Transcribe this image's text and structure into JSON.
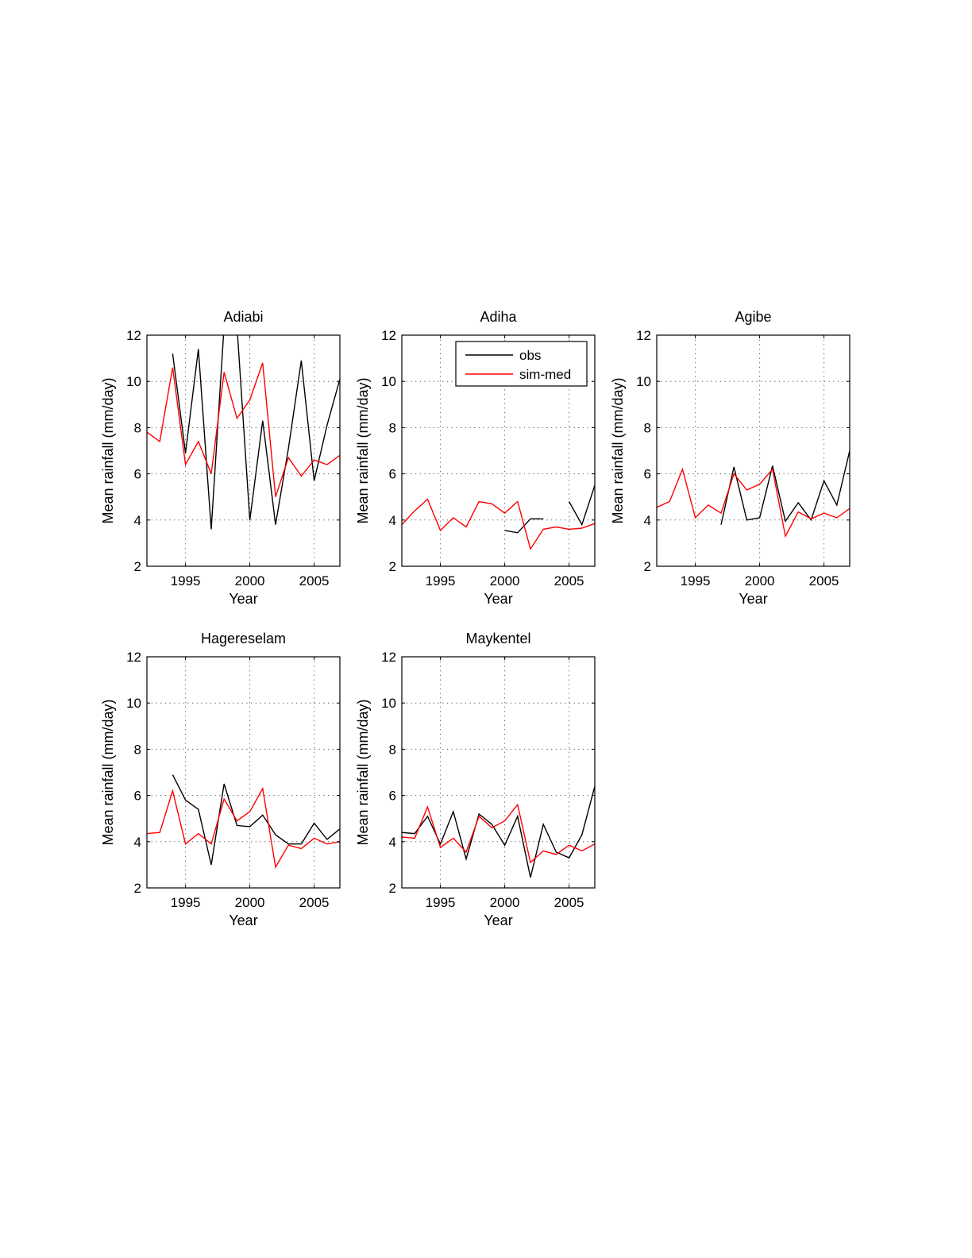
{
  "colors": {
    "obs": "#000000",
    "sim": "#ff0000",
    "grid": "#000000",
    "background": "#ffffff"
  },
  "chart_data": [
    {
      "type": "line",
      "title": "Adiabi",
      "xlabel": "Year",
      "ylabel": "Mean rainfall (mm/day)",
      "xlim": [
        1992,
        2007
      ],
      "ylim": [
        2,
        12
      ],
      "xticks": [
        1995,
        2000,
        2005
      ],
      "yticks": [
        2,
        4,
        6,
        8,
        10,
        12
      ],
      "grid": true,
      "x": [
        1992,
        1993,
        1994,
        1995,
        1996,
        1997,
        1998,
        1999,
        2000,
        2001,
        2002,
        2003,
        2004,
        2005,
        2006,
        2007
      ],
      "series": [
        {
          "name": "obs",
          "color": "#000000",
          "values": [
            null,
            null,
            11.2,
            6.9,
            11.4,
            3.6,
            12.4,
            12.4,
            4.0,
            8.3,
            3.8,
            7.1,
            10.9,
            5.7,
            8.1,
            10.1
          ]
        },
        {
          "name": "sim-med",
          "color": "#ff0000",
          "values": [
            7.8,
            7.4,
            10.6,
            6.4,
            7.4,
            6.0,
            10.4,
            8.4,
            9.2,
            10.8,
            5.0,
            6.7,
            5.9,
            6.6,
            6.4,
            6.8
          ]
        }
      ]
    },
    {
      "type": "line",
      "title": "Adiha",
      "xlabel": "Year",
      "ylabel": "Mean rainfall (mm/day)",
      "xlim": [
        1992,
        2007
      ],
      "ylim": [
        2,
        12
      ],
      "xticks": [
        1995,
        2000,
        2005
      ],
      "yticks": [
        2,
        4,
        6,
        8,
        10,
        12
      ],
      "grid": true,
      "legend": "top-right",
      "x": [
        1992,
        1993,
        1994,
        1995,
        1996,
        1997,
        1998,
        1999,
        2000,
        2001,
        2002,
        2003,
        2004,
        2005,
        2006,
        2007
      ],
      "series": [
        {
          "name": "obs",
          "color": "#000000",
          "values": [
            null,
            null,
            null,
            null,
            null,
            null,
            null,
            null,
            3.55,
            3.45,
            4.05,
            4.05,
            null,
            4.8,
            3.8,
            5.5
          ]
        },
        {
          "name": "sim-med",
          "color": "#ff0000",
          "values": [
            3.8,
            4.4,
            4.9,
            3.55,
            4.1,
            3.7,
            4.8,
            4.7,
            4.3,
            4.8,
            2.75,
            3.6,
            3.7,
            3.6,
            3.65,
            3.85
          ]
        }
      ]
    },
    {
      "type": "line",
      "title": "Agibe",
      "xlabel": "Year",
      "ylabel": "Mean rainfall (mm/day)",
      "xlim": [
        1992,
        2007
      ],
      "ylim": [
        2,
        12
      ],
      "xticks": [
        1995,
        2000,
        2005
      ],
      "yticks": [
        2,
        4,
        6,
        8,
        10,
        12
      ],
      "grid": true,
      "x": [
        1992,
        1993,
        1994,
        1995,
        1996,
        1997,
        1998,
        1999,
        2000,
        2001,
        2002,
        2003,
        2004,
        2005,
        2006,
        2007
      ],
      "series": [
        {
          "name": "obs",
          "color": "#000000",
          "values": [
            null,
            null,
            null,
            null,
            null,
            3.8,
            6.3,
            4.0,
            4.1,
            6.35,
            3.95,
            4.75,
            4.0,
            5.7,
            4.65,
            7.0
          ]
        },
        {
          "name": "sim-med",
          "color": "#ff0000",
          "values": [
            4.55,
            4.8,
            6.2,
            4.1,
            4.65,
            4.3,
            6.0,
            5.3,
            5.55,
            6.2,
            3.3,
            4.35,
            4.05,
            4.3,
            4.1,
            4.5
          ]
        }
      ]
    },
    {
      "type": "line",
      "title": "Hagereselam",
      "xlabel": "Year",
      "ylabel": "Mean rainfall (mm/day)",
      "xlim": [
        1992,
        2007
      ],
      "ylim": [
        2,
        12
      ],
      "xticks": [
        1995,
        2000,
        2005
      ],
      "yticks": [
        2,
        4,
        6,
        8,
        10,
        12
      ],
      "grid": true,
      "x": [
        1992,
        1993,
        1994,
        1995,
        1996,
        1997,
        1998,
        1999,
        2000,
        2001,
        2002,
        2003,
        2004,
        2005,
        2006,
        2007
      ],
      "series": [
        {
          "name": "obs",
          "color": "#000000",
          "values": [
            null,
            null,
            6.9,
            5.8,
            5.4,
            3.0,
            6.5,
            4.7,
            4.65,
            5.15,
            4.3,
            3.9,
            3.9,
            4.8,
            4.1,
            4.55
          ]
        },
        {
          "name": "sim-med",
          "color": "#ff0000",
          "values": [
            4.35,
            4.4,
            6.2,
            3.9,
            4.35,
            3.9,
            5.85,
            4.9,
            5.3,
            6.3,
            2.9,
            3.85,
            3.7,
            4.15,
            3.9,
            4.0
          ]
        }
      ]
    },
    {
      "type": "line",
      "title": "Maykentel",
      "xlabel": "Year",
      "ylabel": "Mean rainfall (mm/day)",
      "xlim": [
        1992,
        2007
      ],
      "ylim": [
        2,
        12
      ],
      "xticks": [
        1995,
        2000,
        2005
      ],
      "yticks": [
        2,
        4,
        6,
        8,
        10,
        12
      ],
      "grid": true,
      "x": [
        1992,
        1993,
        1994,
        1995,
        1996,
        1997,
        1998,
        1999,
        2000,
        2001,
        2002,
        2003,
        2004,
        2005,
        2006,
        2007
      ],
      "series": [
        {
          "name": "obs",
          "color": "#000000",
          "values": [
            4.4,
            4.35,
            5.1,
            3.9,
            5.3,
            3.25,
            5.2,
            4.75,
            3.85,
            5.1,
            2.45,
            4.75,
            3.55,
            3.3,
            4.3,
            6.4
          ]
        },
        {
          "name": "sim-med",
          "color": "#ff0000",
          "values": [
            4.2,
            4.15,
            5.5,
            3.75,
            4.15,
            3.55,
            5.1,
            4.6,
            4.9,
            5.6,
            3.1,
            3.6,
            3.45,
            3.85,
            3.6,
            3.9
          ]
        }
      ]
    }
  ]
}
